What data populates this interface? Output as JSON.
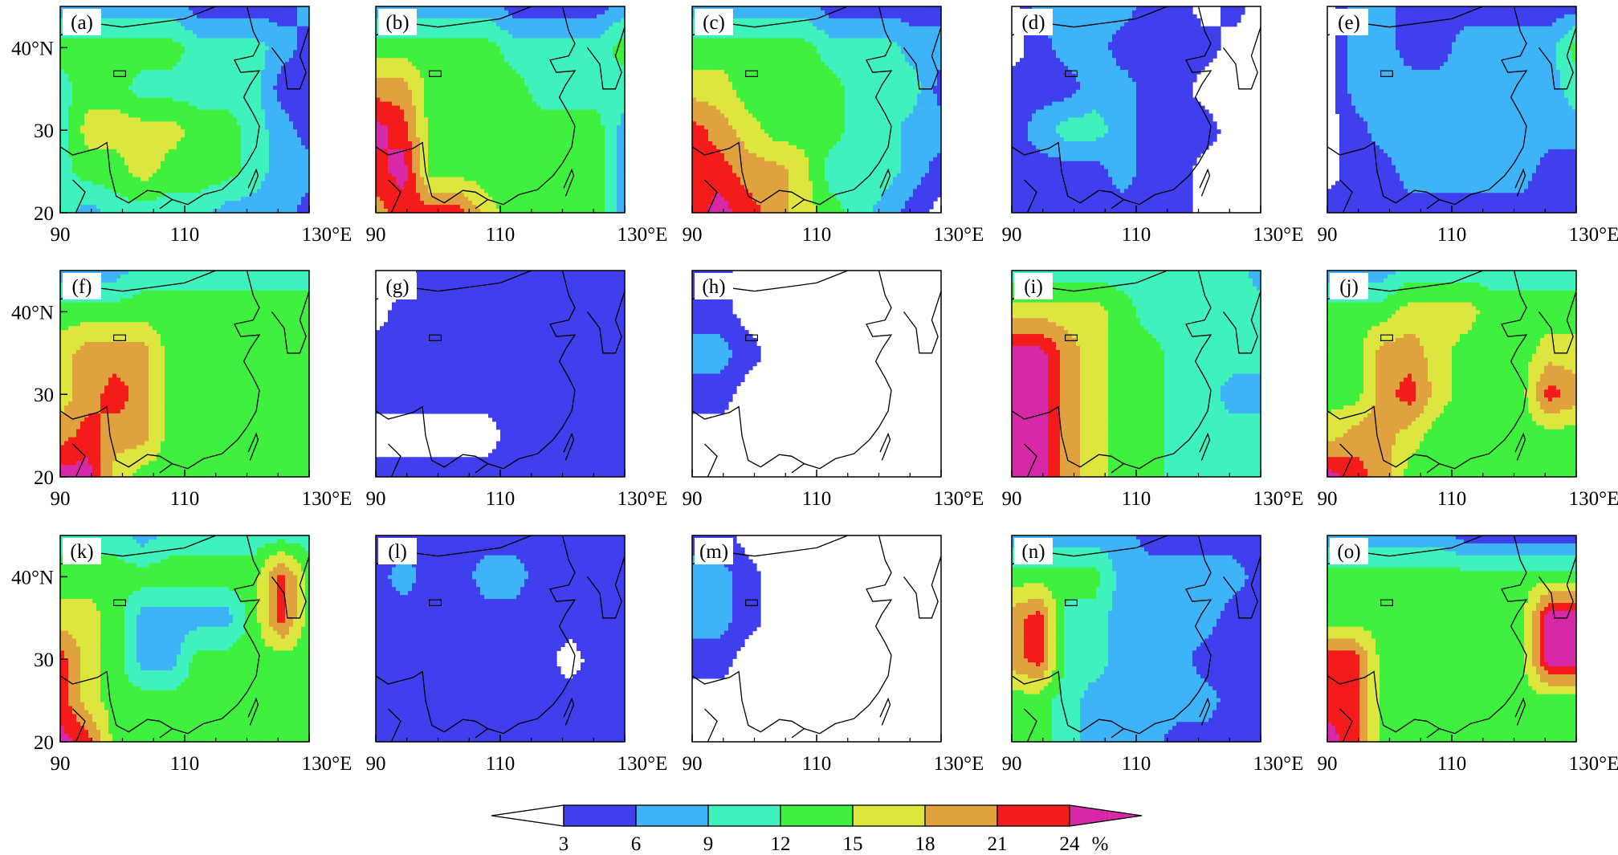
{
  "colors": {
    "levels": [
      "#ffffff",
      "#3f3fee",
      "#3fb3f7",
      "#3ff2bd",
      "#3ff03f",
      "#dde53f",
      "#dfa23f",
      "#f41b1b",
      "#d728a8"
    ],
    "coast": "#000000"
  },
  "chart_data": {
    "type": "heatmap",
    "colorbar": {
      "ticks": [
        "3",
        "6",
        "9",
        "12",
        "15",
        "18",
        "21",
        "24"
      ],
      "unit": "%"
    },
    "axes": {
      "xlim": [
        90,
        130
      ],
      "ylim": [
        20,
        45
      ],
      "x_ticks": [
        "90",
        "110",
        "130°E"
      ],
      "y_ticks_first_column": [
        "20",
        "30",
        "40°N"
      ]
    },
    "panels": [
      {
        "label": "(a)",
        "grid": [
          "2222211112",
          "4444433321",
          "3443333311",
          "3555544321",
          "3445444322",
          "3233332221"
        ]
      },
      {
        "label": "(b)",
        "grid": [
          "2222211112",
          "4444433334",
          "6644443333",
          "8744444442",
          "7844444442",
          "6777544442"
        ]
      },
      {
        "label": "(c)",
        "grid": [
          "2222211111",
          "4444433322",
          "5544443331",
          "7654443322",
          "7766533321",
          "7876543210"
        ]
      },
      {
        "label": "(d)",
        "grid": [
          "0222211010",
          "0122111100",
          "1112211000",
          "1233211100",
          "1111211000",
          "1111111000"
        ]
      },
      {
        "label": "(e)",
        "grid": [
          "0221111111",
          "0221122224",
          "0222222223",
          "0122222222",
          "0112222211",
          "1111111111"
        ]
      },
      {
        "label": "(f)",
        "grid": [
          "2223333333",
          "4444444444",
          "5666444444",
          "5676444444",
          "6766444444",
          "8854444444"
        ]
      },
      {
        "label": "(g)",
        "grid": [
          "0011111111",
          "0111111111",
          "1111111111",
          "1111111111",
          "0000011111",
          "1111111111"
        ]
      },
      {
        "label": "(h)",
        "grid": [
          "1100000000",
          "1100000000",
          "2210000000",
          "1100000000",
          "0000000000",
          "0000000000"
        ]
      },
      {
        "label": "(i)",
        "grid": [
          "3333333332",
          "5555433333",
          "8865443333",
          "8865443322",
          "8865443333",
          "8865443333"
        ]
      },
      {
        "label": "(j)",
        "grid": [
          "2223333333",
          "4445554444",
          "4466544455",
          "4467544476",
          "5665444444",
          "8764444444"
        ]
      },
      {
        "label": "(k)",
        "grid": [
          "3332333333",
          "4444444474",
          "5542222474",
          "7542244444",
          "7544444444",
          "8744444444"
        ]
      },
      {
        "label": "(l)",
        "grid": [
          "1111111111",
          "1211221111",
          "1111111111",
          "1111111011",
          "1111111111",
          "1111111111"
        ]
      },
      {
        "label": "(m)",
        "grid": [
          "1100000000",
          "2210000000",
          "2210000000",
          "1100000000",
          "0000000000",
          "0000000000"
        ]
      },
      {
        "label": "(n)",
        "grid": [
          "2222211111",
          "4444222221",
          "6733222211",
          "6733222111",
          "4432222211",
          "4432221111"
        ]
      },
      {
        "label": "(o)",
        "grid": [
          "2222211111",
          "4444444444",
          "4444444488",
          "7744444488",
          "7744444444",
          "8744444444"
        ]
      }
    ]
  }
}
